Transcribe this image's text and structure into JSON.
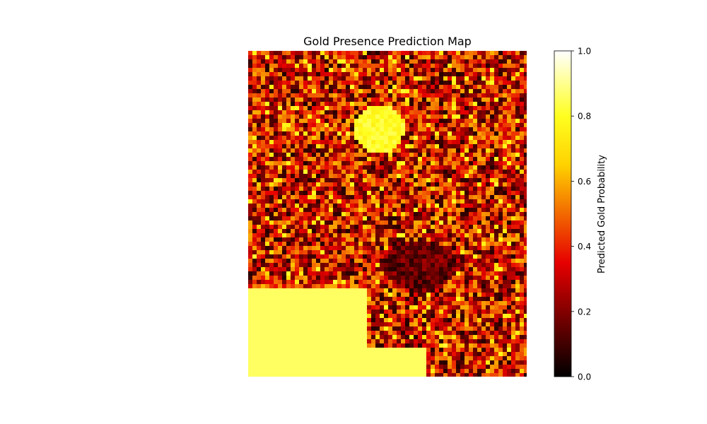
{
  "chart_data": {
    "type": "heatmap",
    "title": "Gold Presence Prediction Map",
    "colormap": "hot",
    "colormap_stops": [
      "#000000",
      "#e60000",
      "#ffd200",
      "#ffff1f",
      "#ffffff"
    ],
    "colorbar": {
      "label": "Predicted Gold Probability",
      "range": [
        0,
        1
      ],
      "ticks": [
        0.0,
        0.2,
        0.4,
        0.6,
        0.8,
        1.0
      ],
      "tick_labels": [
        "0.0",
        "0.2",
        "0.4",
        "0.6",
        "0.8",
        "1.0"
      ]
    },
    "axes_visible": false,
    "grid": false,
    "background_probability_mean": 0.3,
    "regions": [
      {
        "name": "high-probability-block-bottom-left",
        "value": 0.86
      },
      {
        "name": "high-probability-patch-upper-center",
        "value": 0.8
      },
      {
        "name": "low-probability-zone-center",
        "value": 0.05
      }
    ]
  }
}
